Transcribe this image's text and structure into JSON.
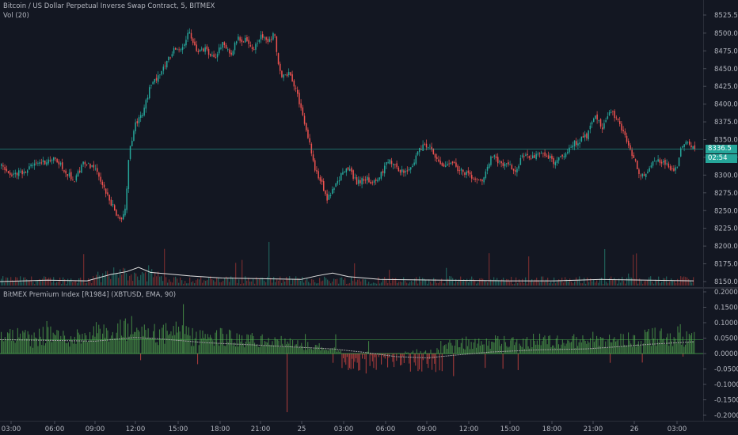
{
  "legends": {
    "main": "Bitcoin / US Dollar Perpetual Inverse Swap Contract, 5, BITMEX",
    "volume": "Vol (20)",
    "premium": "BitMEX Premium Index [R1984] (XBTUSD, EMA, 90)"
  },
  "price_tag": {
    "price": "8336.5",
    "countdown": "02:54",
    "color": "#26a69a"
  },
  "colors": {
    "up": "#26a69a",
    "down": "#ef5350",
    "bg": "#131722",
    "grid": "#2a2e39",
    "text": "#b2b5be",
    "premium_pos": "#4caf50",
    "premium_neg": "#e53935"
  },
  "chart_data": [
    {
      "type": "candlestick",
      "ylim": [
        8137,
        8532
      ],
      "yticks": [
        "8525.5",
        "8500.0",
        "8475.0",
        "8450.0",
        "8425.0",
        "8400.0",
        "8375.0",
        "8350.0",
        "8325.0",
        "8300.0",
        "8275.0",
        "8250.0",
        "8225.0",
        "8200.0",
        "8175.0",
        "8150.0"
      ],
      "last_price": 8336.5,
      "path": [
        [
          0,
          8315
        ],
        [
          12,
          8298
        ],
        [
          28,
          8305
        ],
        [
          50,
          8318
        ],
        [
          70,
          8322
        ],
        [
          82,
          8305
        ],
        [
          93,
          8292
        ],
        [
          104,
          8316
        ],
        [
          116,
          8312
        ],
        [
          124,
          8300
        ],
        [
          132,
          8278
        ],
        [
          142,
          8255
        ],
        [
          152,
          8232
        ],
        [
          158,
          8258
        ],
        [
          162,
          8332
        ],
        [
          170,
          8372
        ],
        [
          178,
          8382
        ],
        [
          190,
          8428
        ],
        [
          200,
          8440
        ],
        [
          210,
          8462
        ],
        [
          220,
          8478
        ],
        [
          230,
          8482
        ],
        [
          238,
          8500
        ],
        [
          248,
          8472
        ],
        [
          258,
          8478
        ],
        [
          270,
          8462
        ],
        [
          280,
          8488
        ],
        [
          290,
          8470
        ],
        [
          300,
          8492
        ],
        [
          312,
          8490
        ],
        [
          320,
          8478
        ],
        [
          328,
          8498
        ],
        [
          336,
          8488
        ],
        [
          346,
          8500
        ],
        [
          350,
          8462
        ],
        [
          356,
          8438
        ],
        [
          365,
          8442
        ],
        [
          372,
          8422
        ],
        [
          380,
          8392
        ],
        [
          390,
          8348
        ],
        [
          398,
          8305
        ],
        [
          405,
          8292
        ],
        [
          412,
          8262
        ],
        [
          420,
          8282
        ],
        [
          430,
          8300
        ],
        [
          440,
          8310
        ],
        [
          450,
          8288
        ],
        [
          460,
          8297
        ],
        [
          470,
          8288
        ],
        [
          480,
          8300
        ],
        [
          490,
          8322
        ],
        [
          500,
          8310
        ],
        [
          510,
          8303
        ],
        [
          520,
          8312
        ],
        [
          530,
          8338
        ],
        [
          540,
          8342
        ],
        [
          550,
          8322
        ],
        [
          560,
          8312
        ],
        [
          570,
          8318
        ],
        [
          580,
          8306
        ],
        [
          590,
          8300
        ],
        [
          600,
          8290
        ],
        [
          610,
          8292
        ],
        [
          620,
          8328
        ],
        [
          630,
          8318
        ],
        [
          640,
          8315
        ],
        [
          650,
          8305
        ],
        [
          660,
          8328
        ],
        [
          670,
          8322
        ],
        [
          680,
          8332
        ],
        [
          690,
          8327
        ],
        [
          700,
          8318
        ],
        [
          710,
          8325
        ],
        [
          720,
          8342
        ],
        [
          730,
          8348
        ],
        [
          740,
          8355
        ],
        [
          750,
          8382
        ],
        [
          760,
          8367
        ],
        [
          770,
          8390
        ],
        [
          780,
          8375
        ],
        [
          790,
          8352
        ],
        [
          800,
          8322
        ],
        [
          808,
          8298
        ],
        [
          815,
          8300
        ],
        [
          822,
          8318
        ],
        [
          830,
          8322
        ],
        [
          838,
          8318
        ],
        [
          846,
          8308
        ],
        [
          854,
          8310
        ],
        [
          860,
          8340
        ],
        [
          868,
          8345
        ],
        [
          876,
          8336.5
        ]
      ]
    },
    {
      "type": "bar",
      "name": "Vol (20)",
      "ma_path": [
        [
          0,
          8150
        ],
        [
          60,
          8152
        ],
        [
          110,
          8151
        ],
        [
          140,
          8160
        ],
        [
          160,
          8164
        ],
        [
          175,
          8170
        ],
        [
          190,
          8163
        ],
        [
          210,
          8161
        ],
        [
          240,
          8158
        ],
        [
          280,
          8155
        ],
        [
          330,
          8154
        ],
        [
          380,
          8153
        ],
        [
          400,
          8158
        ],
        [
          420,
          8162
        ],
        [
          440,
          8157
        ],
        [
          480,
          8153
        ],
        [
          560,
          8152
        ],
        [
          640,
          8151
        ],
        [
          700,
          8151
        ],
        [
          760,
          8153
        ],
        [
          820,
          8152
        ],
        [
          876,
          8151
        ]
      ],
      "ma_line_color": "#e0e0e0"
    },
    {
      "type": "bar",
      "name": "BitMEX Premium Index",
      "ylim": [
        -0.22,
        0.21
      ],
      "yticks": [
        "0.2000",
        "0.1500",
        "0.1000",
        "0.0500",
        "0.0000",
        "-0.0500",
        "-0.1000",
        "-0.1500",
        "-0.2000"
      ],
      "hline": 0.045,
      "ema_path": [
        [
          0,
          0.045
        ],
        [
          60,
          0.043
        ],
        [
          120,
          0.04
        ],
        [
          170,
          0.052
        ],
        [
          200,
          0.048
        ],
        [
          260,
          0.035
        ],
        [
          320,
          0.028
        ],
        [
          380,
          0.02
        ],
        [
          420,
          0.015
        ],
        [
          460,
          0.004
        ],
        [
          500,
          -0.01
        ],
        [
          540,
          -0.014
        ],
        [
          580,
          -0.004
        ],
        [
          620,
          0.005
        ],
        [
          680,
          0.012
        ],
        [
          740,
          0.015
        ],
        [
          780,
          0.022
        ],
        [
          820,
          0.03
        ],
        [
          876,
          0.038
        ]
      ],
      "envelope": [
        [
          0,
          0.06
        ],
        [
          20,
          0.075
        ],
        [
          40,
          0.06
        ],
        [
          60,
          0.09
        ],
        [
          80,
          0.065
        ],
        [
          100,
          0.072
        ],
        [
          120,
          0.095
        ],
        [
          140,
          0.068
        ],
        [
          160,
          0.11
        ],
        [
          180,
          0.095
        ],
        [
          200,
          0.08
        ],
        [
          220,
          0.09
        ],
        [
          240,
          0.07
        ],
        [
          260,
          0.06
        ],
        [
          280,
          0.075
        ],
        [
          300,
          0.055
        ],
        [
          320,
          0.06
        ],
        [
          340,
          0.05
        ],
        [
          360,
          0.045
        ],
        [
          380,
          0.035
        ],
        [
          400,
          0.03
        ],
        [
          420,
          0.02
        ],
        [
          440,
          0.005
        ],
        [
          460,
          -0.005
        ],
        [
          480,
          -0.005
        ],
        [
          500,
          0.0
        ],
        [
          520,
          0.01
        ],
        [
          540,
          0.02
        ],
        [
          560,
          0.035
        ],
        [
          580,
          0.045
        ],
        [
          600,
          0.04
        ],
        [
          620,
          0.05
        ],
        [
          640,
          0.055
        ],
        [
          660,
          0.045
        ],
        [
          680,
          0.06
        ],
        [
          700,
          0.05
        ],
        [
          720,
          0.055
        ],
        [
          740,
          0.05
        ],
        [
          760,
          0.06
        ],
        [
          780,
          0.055
        ],
        [
          800,
          0.065
        ],
        [
          820,
          0.075
        ],
        [
          840,
          0.07
        ],
        [
          860,
          0.08
        ],
        [
          876,
          0.06
        ]
      ]
    }
  ],
  "xaxis": {
    "ticks": [
      {
        "label": "03:00",
        "x": 14
      },
      {
        "label": "06:00",
        "x": 69
      },
      {
        "label": "09:00",
        "x": 120
      },
      {
        "label": "12:00",
        "x": 171
      },
      {
        "label": "15:00",
        "x": 225
      },
      {
        "label": "18:00",
        "x": 278
      },
      {
        "label": "21:00",
        "x": 329
      },
      {
        "label": "25",
        "x": 381
      },
      {
        "label": "03:00",
        "x": 434
      },
      {
        "label": "06:00",
        "x": 487
      },
      {
        "label": "09:00",
        "x": 539
      },
      {
        "label": "12:00",
        "x": 592
      },
      {
        "label": "15:00",
        "x": 644
      },
      {
        "label": "18:00",
        "x": 697
      },
      {
        "label": "21:00",
        "x": 749
      },
      {
        "label": "26",
        "x": 801
      },
      {
        "label": "03:00",
        "x": 855
      }
    ]
  }
}
